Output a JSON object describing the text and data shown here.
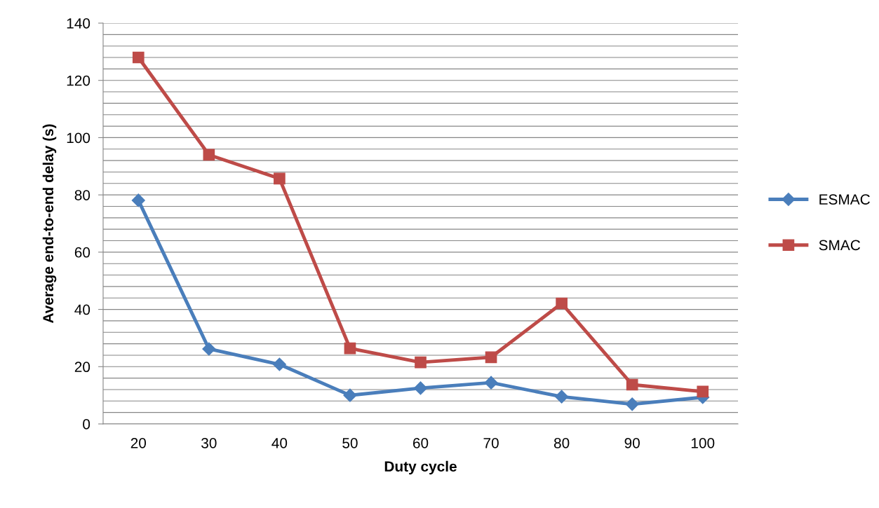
{
  "chart_data": {
    "type": "line",
    "xlabel": "Duty cycle",
    "ylabel": "Average end-to-end delay (s)",
    "categories": [
      "20",
      "30",
      "40",
      "50",
      "60",
      "70",
      "80",
      "90",
      "100"
    ],
    "series": [
      {
        "name": "ESMAC",
        "color": "#4a7ebb",
        "marker": "diamond",
        "values": [
          78.1,
          26.2,
          20.8,
          10.0,
          12.5,
          14.4,
          9.5,
          6.9,
          9.3
        ]
      },
      {
        "name": "SMAC",
        "color": "#be4b48",
        "marker": "square",
        "values": [
          128,
          94,
          85.7,
          26.4,
          21.5,
          23.3,
          42.1,
          13.7,
          11.3
        ]
      }
    ],
    "ylim": [
      0,
      140
    ],
    "yticks": [
      0,
      {
        "value": 4,
        "label": null
      },
      {
        "value": 8,
        "label": null
      },
      {
        "value": 12,
        "label": null
      },
      {
        "value": 16,
        "label": null
      },
      20,
      {
        "value": 24,
        "label": null
      },
      {
        "value": 28,
        "label": null
      },
      {
        "value": 32,
        "label": null
      },
      {
        "value": 36,
        "label": null
      },
      40,
      {
        "value": 44,
        "label": null
      },
      {
        "value": 48,
        "label": null
      },
      {
        "value": 52,
        "label": null
      },
      {
        "value": 56,
        "label": null
      },
      60,
      {
        "value": 64,
        "label": null
      },
      {
        "value": 68,
        "label": null
      },
      {
        "value": 72,
        "label": null
      },
      {
        "value": 76,
        "label": null
      },
      80,
      {
        "value": 84,
        "label": null
      },
      {
        "value": 88,
        "label": null
      },
      {
        "value": 92,
        "label": null
      },
      {
        "value": 96,
        "label": null
      },
      100,
      {
        "value": 104,
        "label": null
      },
      {
        "value": 108,
        "label": null
      },
      {
        "value": 112,
        "label": null
      },
      {
        "value": 116,
        "label": null
      },
      120,
      {
        "value": 124,
        "label": null
      },
      {
        "value": 128,
        "label": null
      },
      {
        "value": 132,
        "label": null
      },
      {
        "value": 136,
        "label": null
      },
      140
    ],
    "grid": "y",
    "legend": "right",
    "line_style": "solid"
  }
}
